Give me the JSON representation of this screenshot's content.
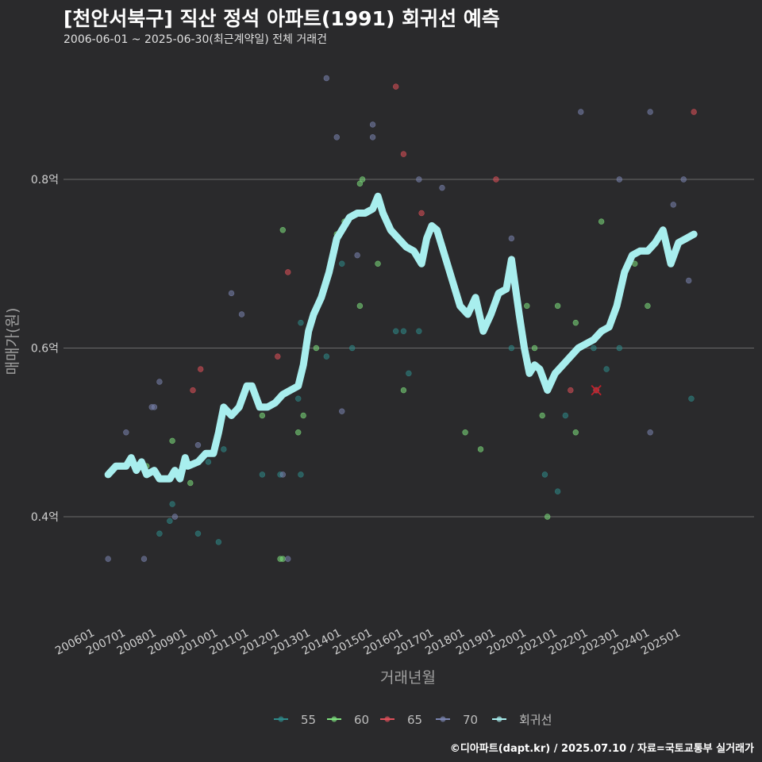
{
  "title": "[천안서북구] 직산 정석 아파트(1991) 회귀선 예측",
  "subtitle": "2006-06-01 ~ 2025-06-30(최근계약일) 전체 거래건",
  "footer": "©디아파트(dapt.kr) / 2025.07.10 / 자료=국토교통부 실거래가",
  "chart_data": {
    "type": "scatter",
    "xlabel": "거래년월",
    "ylabel": "매매가(원)",
    "ylim": [
      0.265,
      0.935
    ],
    "xlim": [
      "2006-01",
      "2025-12"
    ],
    "grid": true,
    "legend_position": "bottom",
    "y_ticks": [
      {
        "value": 0.4,
        "label": "0.4억"
      },
      {
        "value": 0.6,
        "label": "0.6억"
      },
      {
        "value": 0.8,
        "label": "0.8억"
      }
    ],
    "x_ticks": [
      {
        "value": "2006-01",
        "label": "200601"
      },
      {
        "value": "2007-01",
        "label": "200701"
      },
      {
        "value": "2008-01",
        "label": "200801"
      },
      {
        "value": "2009-01",
        "label": "200901"
      },
      {
        "value": "2010-01",
        "label": "201001"
      },
      {
        "value": "2011-01",
        "label": "201101"
      },
      {
        "value": "2012-01",
        "label": "201201"
      },
      {
        "value": "2013-01",
        "label": "201301"
      },
      {
        "value": "2014-01",
        "label": "201401"
      },
      {
        "value": "2015-01",
        "label": "201501"
      },
      {
        "value": "2016-01",
        "label": "201601"
      },
      {
        "value": "2017-01",
        "label": "201701"
      },
      {
        "value": "2018-01",
        "label": "201801"
      },
      {
        "value": "2019-01",
        "label": "201901"
      },
      {
        "value": "2020-01",
        "label": "202001"
      },
      {
        "value": "2021-01",
        "label": "202101"
      },
      {
        "value": "2022-01",
        "label": "202201"
      },
      {
        "value": "2023-01",
        "label": "202301"
      },
      {
        "value": "2024-01",
        "label": "202401"
      },
      {
        "value": "2025-01",
        "label": "202501"
      }
    ],
    "colors": {
      "55": "#2e8b8b",
      "60": "#7ee07e",
      "65": "#e0505a",
      "70": "#7a84b0",
      "regression": "#a8eeee",
      "grid": "#6a6a6a",
      "background": "#2a2a2c",
      "cancel_marker": "#c0202a"
    },
    "series": [
      {
        "name": "55",
        "points": [
          [
            "2007-09",
            0.45
          ],
          [
            "2008-02",
            0.38
          ],
          [
            "2008-07",
            0.415
          ],
          [
            "2009-09",
            0.465
          ],
          [
            "2010-03",
            0.48
          ],
          [
            "2011-06",
            0.45
          ],
          [
            "2012-01",
            0.45
          ],
          [
            "2012-08",
            0.54
          ],
          [
            "2012-09",
            0.45
          ],
          [
            "2014-01",
            0.7
          ],
          [
            "2013-07",
            0.59
          ],
          [
            "2015-10",
            0.62
          ],
          [
            "2016-01",
            0.62
          ],
          [
            "2016-03",
            0.57
          ],
          [
            "2016-07",
            0.62
          ],
          [
            "2019-07",
            0.6
          ],
          [
            "2020-08",
            0.45
          ],
          [
            "2021-01",
            0.43
          ],
          [
            "2021-04",
            0.52
          ],
          [
            "2022-03",
            0.6
          ],
          [
            "2022-08",
            0.575
          ],
          [
            "2023-01",
            0.6
          ],
          [
            "2024-07",
            0.73
          ],
          [
            "2025-05",
            0.54
          ],
          [
            "2008-06",
            0.395
          ],
          [
            "2009-05",
            0.38
          ],
          [
            "2010-01",
            0.37
          ],
          [
            "2012-09",
            0.63
          ],
          [
            "2014-05",
            0.6
          ]
        ]
      },
      {
        "name": "60",
        "points": [
          [
            "2007-05",
            0.455
          ],
          [
            "2007-09",
            0.46
          ],
          [
            "2008-07",
            0.49
          ],
          [
            "2009-02",
            0.44
          ],
          [
            "2011-06",
            0.52
          ],
          [
            "2012-01",
            0.35
          ],
          [
            "2012-02",
            0.74
          ],
          [
            "2012-08",
            0.5
          ],
          [
            "2012-10",
            0.52
          ],
          [
            "2013-03",
            0.6
          ],
          [
            "2013-11",
            0.735
          ],
          [
            "2014-02",
            0.75
          ],
          [
            "2014-08",
            0.795
          ],
          [
            "2014-09",
            0.8
          ],
          [
            "2014-08",
            0.65
          ],
          [
            "2015-03",
            0.7
          ],
          [
            "2016-01",
            0.55
          ],
          [
            "2018-01",
            0.5
          ],
          [
            "2018-07",
            0.48
          ],
          [
            "2020-01",
            0.65
          ],
          [
            "2020-04",
            0.6
          ],
          [
            "2020-07",
            0.52
          ],
          [
            "2020-09",
            0.4
          ],
          [
            "2021-01",
            0.65
          ],
          [
            "2021-08",
            0.5
          ],
          [
            "2021-08",
            0.63
          ],
          [
            "2022-06",
            0.75
          ],
          [
            "2023-07",
            0.7
          ],
          [
            "2023-12",
            0.65
          ],
          [
            "2012-02",
            0.35
          ]
        ]
      },
      {
        "name": "65",
        "points": [
          [
            "2009-03",
            0.55
          ],
          [
            "2009-06",
            0.575
          ],
          [
            "2011-12",
            0.59
          ],
          [
            "2012-04",
            0.69
          ],
          [
            "2015-10",
            0.91
          ],
          [
            "2016-01",
            0.83
          ],
          [
            "2016-08",
            0.76
          ],
          [
            "2019-01",
            0.8
          ],
          [
            "2021-06",
            0.55
          ],
          [
            "2025-06",
            0.88
          ]
        ]
      },
      {
        "name": "70",
        "points": [
          [
            "2006-06",
            0.35
          ],
          [
            "2007-01",
            0.5
          ],
          [
            "2007-08",
            0.35
          ],
          [
            "2007-11",
            0.53
          ],
          [
            "2007-12",
            0.53
          ],
          [
            "2008-02",
            0.56
          ],
          [
            "2008-08",
            0.4
          ],
          [
            "2009-05",
            0.485
          ],
          [
            "2010-06",
            0.665
          ],
          [
            "2010-10",
            0.64
          ],
          [
            "2012-04",
            0.35
          ],
          [
            "2013-07",
            0.92
          ],
          [
            "2013-11",
            0.85
          ],
          [
            "2014-01",
            0.525
          ],
          [
            "2014-07",
            0.71
          ],
          [
            "2015-01",
            0.85
          ],
          [
            "2015-01",
            0.865
          ],
          [
            "2016-07",
            0.8
          ],
          [
            "2017-04",
            0.79
          ],
          [
            "2019-07",
            0.73
          ],
          [
            "2021-10",
            0.88
          ],
          [
            "2023-01",
            0.8
          ],
          [
            "2024-01",
            0.88
          ],
          [
            "2024-10",
            0.77
          ],
          [
            "2025-02",
            0.8
          ],
          [
            "2025-04",
            0.68
          ],
          [
            "2024-01",
            0.5
          ],
          [
            "2012-02",
            0.45
          ]
        ]
      }
    ],
    "regression": {
      "name": "회귀선",
      "points": [
        [
          "2006-06",
          0.45
        ],
        [
          "2006-09",
          0.46
        ],
        [
          "2007-01",
          0.46
        ],
        [
          "2007-03",
          0.47
        ],
        [
          "2007-05",
          0.455
        ],
        [
          "2007-07",
          0.465
        ],
        [
          "2007-09",
          0.45
        ],
        [
          "2007-12",
          0.455
        ],
        [
          "2008-02",
          0.445
        ],
        [
          "2008-06",
          0.445
        ],
        [
          "2008-08",
          0.455
        ],
        [
          "2008-10",
          0.445
        ],
        [
          "2008-12",
          0.47
        ],
        [
          "2009-01",
          0.46
        ],
        [
          "2009-05",
          0.465
        ],
        [
          "2009-08",
          0.475
        ],
        [
          "2009-11",
          0.475
        ],
        [
          "2010-01",
          0.5
        ],
        [
          "2010-03",
          0.53
        ],
        [
          "2010-06",
          0.52
        ],
        [
          "2010-09",
          0.53
        ],
        [
          "2010-12",
          0.555
        ],
        [
          "2011-02",
          0.555
        ],
        [
          "2011-05",
          0.53
        ],
        [
          "2011-08",
          0.53
        ],
        [
          "2011-11",
          0.535
        ],
        [
          "2012-02",
          0.545
        ],
        [
          "2012-05",
          0.55
        ],
        [
          "2012-08",
          0.555
        ],
        [
          "2012-10",
          0.58
        ],
        [
          "2012-12",
          0.62
        ],
        [
          "2013-02",
          0.64
        ],
        [
          "2013-05",
          0.66
        ],
        [
          "2013-08",
          0.69
        ],
        [
          "2013-11",
          0.73
        ],
        [
          "2014-01",
          0.74
        ],
        [
          "2014-04",
          0.755
        ],
        [
          "2014-07",
          0.76
        ],
        [
          "2014-10",
          0.76
        ],
        [
          "2015-01",
          0.765
        ],
        [
          "2015-03",
          0.78
        ],
        [
          "2015-05",
          0.76
        ],
        [
          "2015-08",
          0.74
        ],
        [
          "2015-11",
          0.73
        ],
        [
          "2016-02",
          0.72
        ],
        [
          "2016-05",
          0.715
        ],
        [
          "2016-08",
          0.7
        ],
        [
          "2016-10",
          0.73
        ],
        [
          "2016-12",
          0.745
        ],
        [
          "2017-02",
          0.74
        ],
        [
          "2017-05",
          0.71
        ],
        [
          "2017-08",
          0.68
        ],
        [
          "2017-11",
          0.65
        ],
        [
          "2018-02",
          0.64
        ],
        [
          "2018-05",
          0.66
        ],
        [
          "2018-08",
          0.62
        ],
        [
          "2018-11",
          0.64
        ],
        [
          "2019-02",
          0.665
        ],
        [
          "2019-05",
          0.67
        ],
        [
          "2019-07",
          0.705
        ],
        [
          "2019-10",
          0.64
        ],
        [
          "2019-12",
          0.6
        ],
        [
          "2020-02",
          0.57
        ],
        [
          "2020-04",
          0.58
        ],
        [
          "2020-06",
          0.575
        ],
        [
          "2020-09",
          0.55
        ],
        [
          "2020-12",
          0.57
        ],
        [
          "2021-03",
          0.58
        ],
        [
          "2021-06",
          0.59
        ],
        [
          "2021-09",
          0.6
        ],
        [
          "2021-12",
          0.605
        ],
        [
          "2022-03",
          0.61
        ],
        [
          "2022-06",
          0.62
        ],
        [
          "2022-09",
          0.625
        ],
        [
          "2022-12",
          0.65
        ],
        [
          "2023-03",
          0.69
        ],
        [
          "2023-06",
          0.71
        ],
        [
          "2023-09",
          0.715
        ],
        [
          "2023-12",
          0.715
        ],
        [
          "2024-03",
          0.725
        ],
        [
          "2024-06",
          0.74
        ],
        [
          "2024-09",
          0.7
        ],
        [
          "2024-12",
          0.725
        ],
        [
          "2025-03",
          0.73
        ],
        [
          "2025-06",
          0.735
        ]
      ]
    },
    "cancelled": [
      [
        "2022-04",
        0.55
      ]
    ]
  }
}
